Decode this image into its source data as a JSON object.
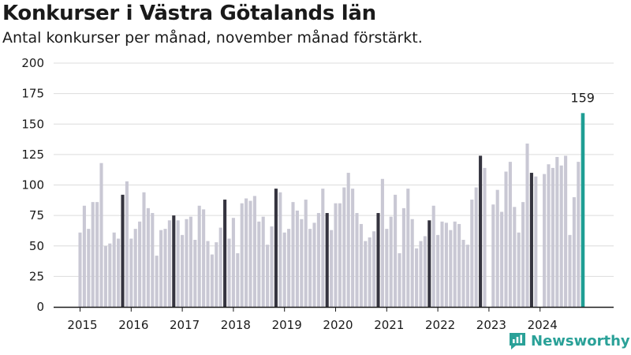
{
  "title": "Konkurser i Västra Götalands län",
  "subtitle": "Antal konkurser per månad, november månad förstärkt.",
  "brand": "Newsworthy",
  "colors": {
    "bar": "#c9c8d4",
    "november": "#35343f",
    "latest": "#1f9e94",
    "brand": "#2aa198"
  },
  "chart_data": {
    "type": "bar",
    "title": "Konkurser i Västra Götalands län",
    "subtitle": "Antal konkurser per månad, november månad förstärkt.",
    "xlabel": "",
    "ylabel": "",
    "ylim": [
      0,
      200
    ],
    "yticks": [
      0,
      25,
      50,
      75,
      100,
      125,
      150,
      175,
      200
    ],
    "xtick_labels": [
      "2015",
      "2016",
      "2017",
      "2018",
      "2019",
      "2020",
      "2021",
      "2022",
      "2023",
      "2024"
    ],
    "grid": true,
    "highlight": "november",
    "annotation": {
      "label": "159",
      "target": "2024-11"
    },
    "start_month": "2015-01",
    "values": [
      61,
      83,
      64,
      86,
      86,
      118,
      50,
      52,
      61,
      56,
      92,
      103,
      56,
      64,
      70,
      94,
      81,
      77,
      42,
      63,
      64,
      71,
      75,
      71,
      59,
      72,
      74,
      55,
      83,
      80,
      54,
      43,
      53,
      65,
      88,
      56,
      73,
      44,
      85,
      89,
      87,
      91,
      70,
      74,
      51,
      66,
      97,
      94,
      61,
      64,
      86,
      79,
      72,
      88,
      64,
      69,
      77,
      97,
      77,
      63,
      85,
      85,
      98,
      110,
      97,
      77,
      68,
      54,
      57,
      62,
      77,
      105,
      64,
      74,
      92,
      44,
      81,
      97,
      72,
      48,
      54,
      58,
      71,
      83,
      59,
      70,
      69,
      63,
      70,
      68,
      55,
      51,
      88,
      98,
      124,
      114,
      0,
      84,
      96,
      78,
      111,
      119,
      82,
      61,
      86,
      134,
      110,
      107,
      0,
      109,
      117,
      114,
      123,
      116,
      124,
      59,
      90,
      119,
      159
    ]
  }
}
